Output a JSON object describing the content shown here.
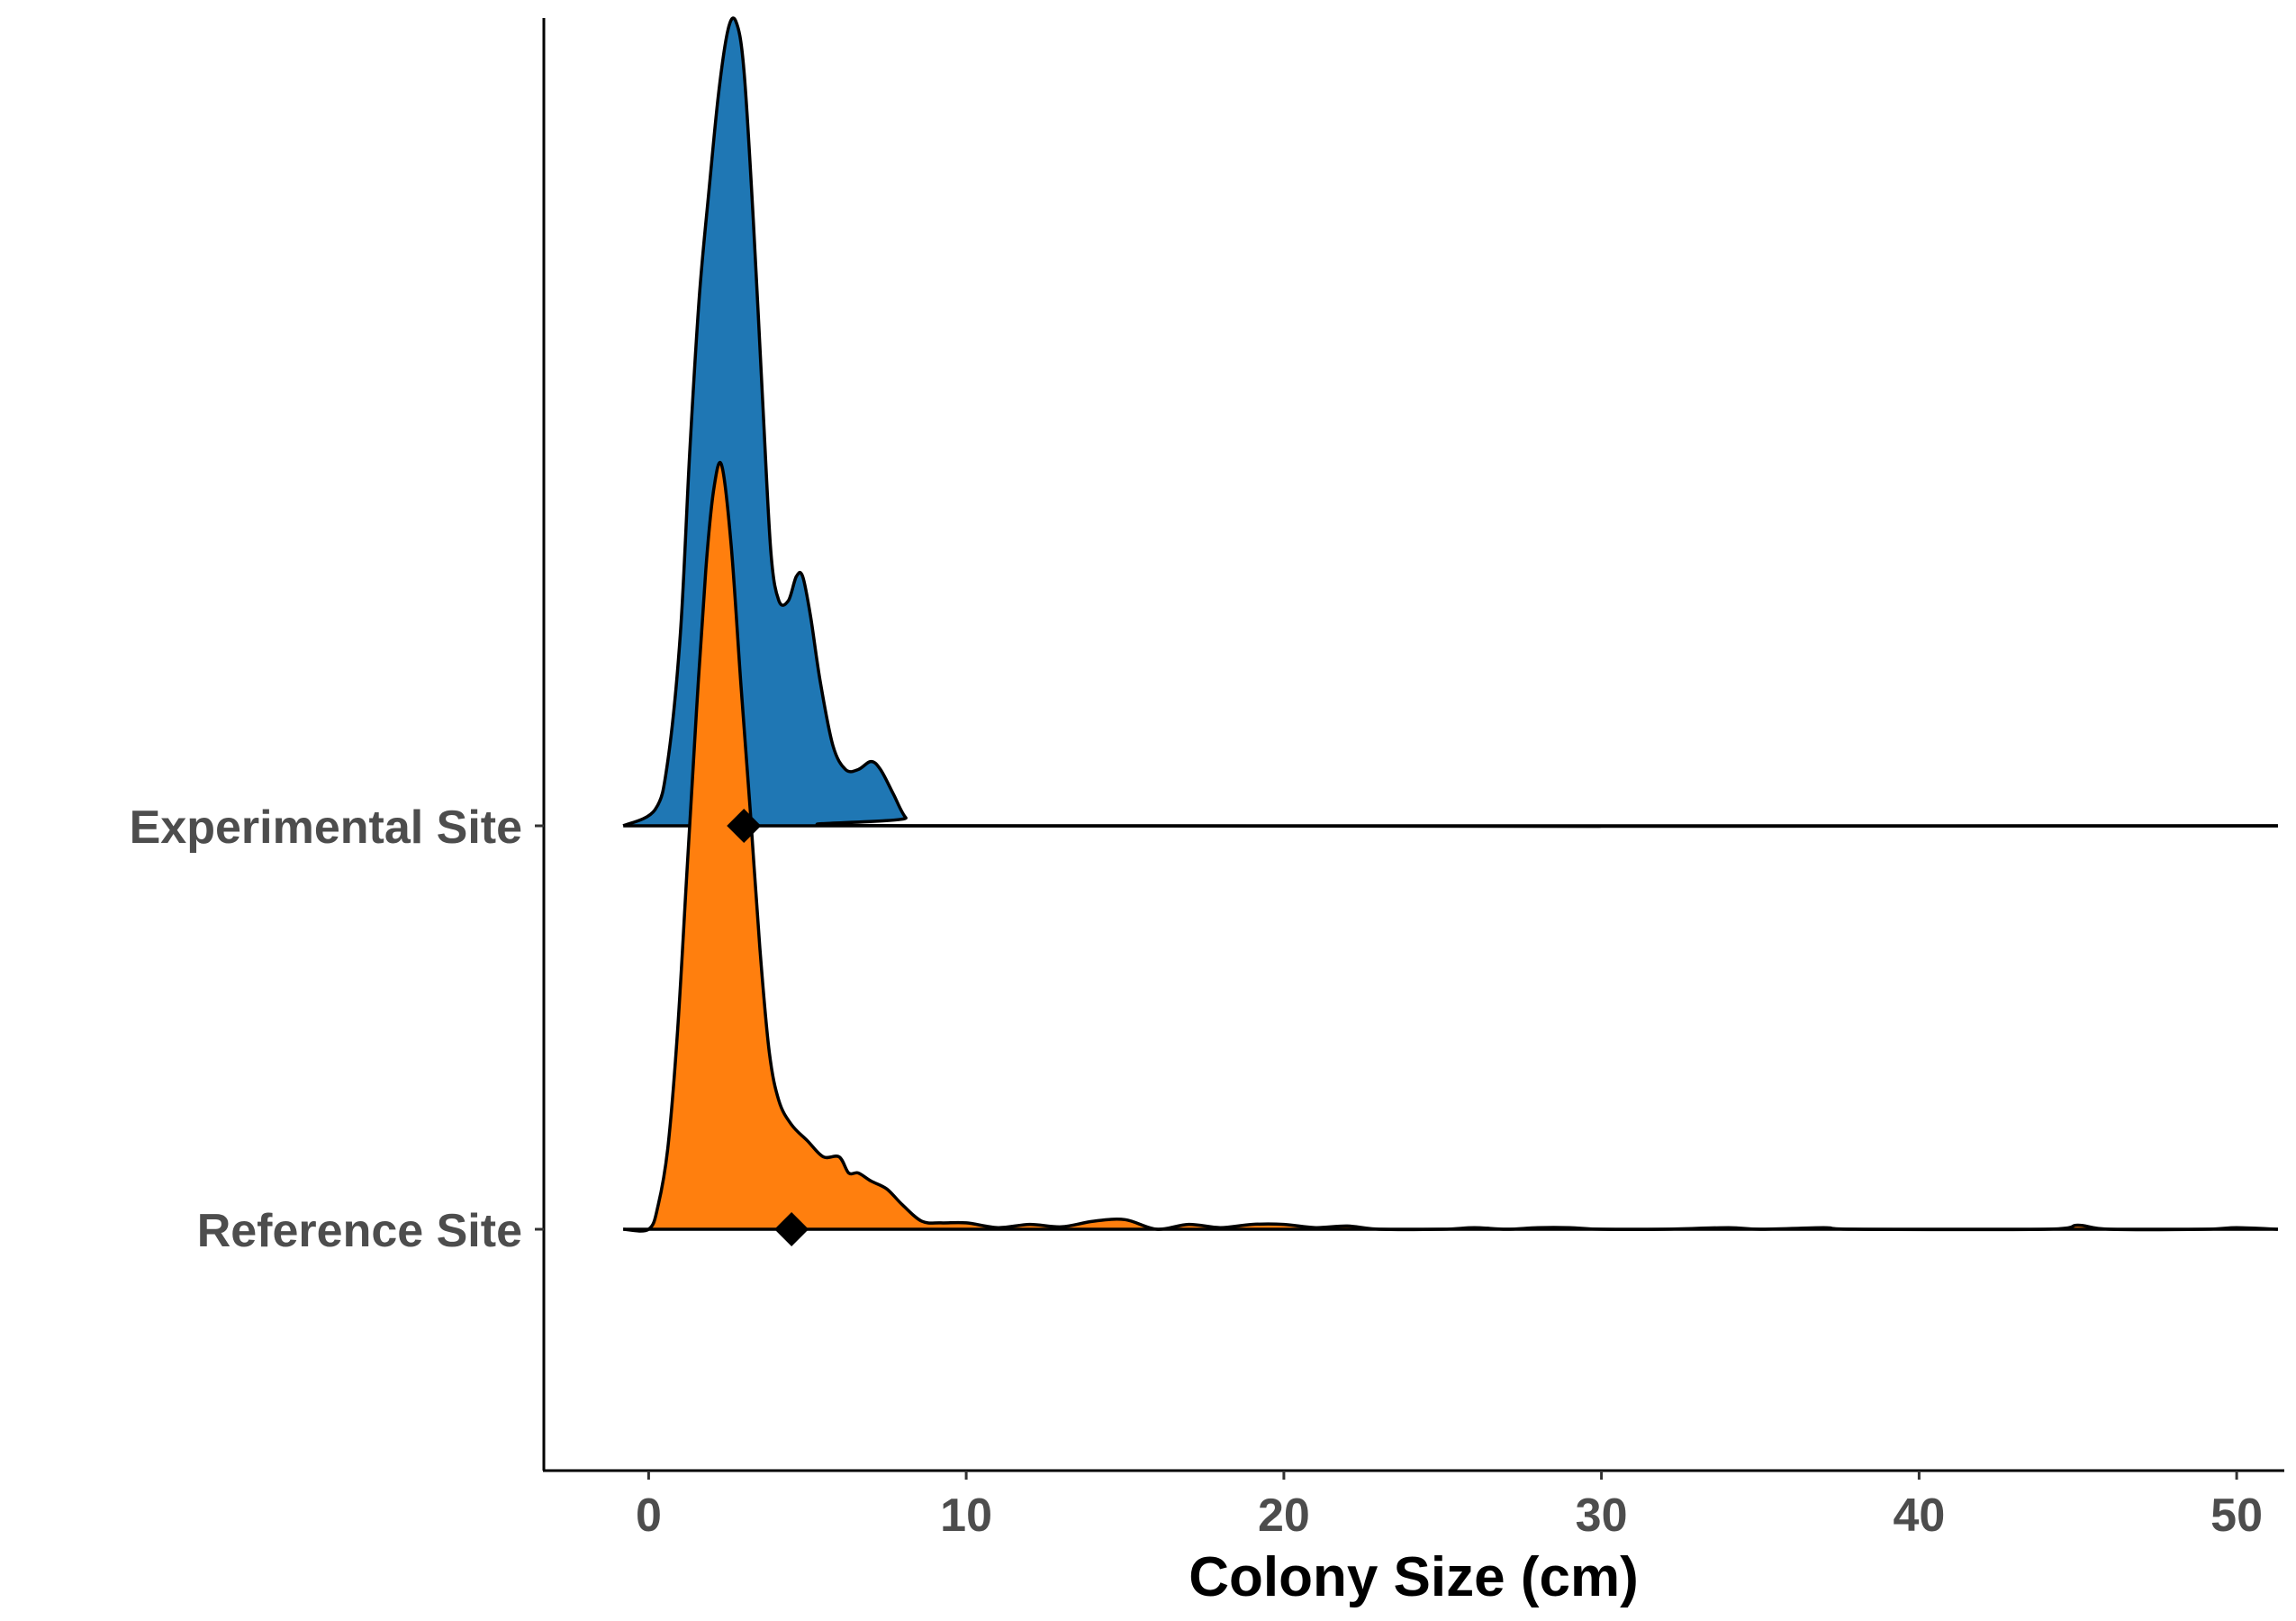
{
  "chart_data": {
    "type": "ridgeline",
    "xlabel": "Colony Size (cm)",
    "ylabel": "",
    "xlim": [
      -3.3,
      51.5
    ],
    "x_ticks": [
      0,
      10,
      20,
      30,
      40,
      50
    ],
    "x_tick_labels": [
      "0",
      "10",
      "20",
      "30",
      "40",
      "50"
    ],
    "grid": false,
    "legend": "none",
    "marker_shape": "diamond",
    "series": [
      {
        "name": "Experimental Site",
        "color": "#1f77b4",
        "mean": 3.0,
        "x": [
          -0.8,
          0.2,
          0.6,
          1.0,
          1.3,
          1.6,
          1.9,
          2.2,
          2.5,
          2.75,
          3.0,
          3.3,
          3.6,
          3.85,
          4.1,
          4.4,
          4.65,
          4.85,
          5.1,
          5.4,
          5.8,
          6.2,
          6.6,
          7.0,
          7.3,
          7.7,
          8.1,
          8.6,
          51.3
        ],
        "density": [
          0.0,
          0.02,
          0.08,
          0.24,
          0.47,
          0.66,
          0.79,
          0.91,
          0.99,
          1.0,
          0.94,
          0.75,
          0.52,
          0.34,
          0.28,
          0.28,
          0.31,
          0.31,
          0.26,
          0.18,
          0.1,
          0.07,
          0.07,
          0.08,
          0.07,
          0.04,
          0.01,
          0.0,
          0.0
        ]
      },
      {
        "name": "Reference Site",
        "color": "#ff7f0e",
        "mean": 4.5,
        "x": [
          -0.8,
          0.0,
          0.3,
          0.6,
          0.9,
          1.2,
          1.5,
          1.8,
          2.05,
          2.3,
          2.6,
          2.9,
          3.2,
          3.5,
          3.8,
          4.1,
          4.5,
          5.0,
          5.5,
          6.0,
          6.3,
          6.6,
          7.0,
          7.5,
          8.0,
          8.6,
          9.2,
          10.0,
          11.0,
          12.0,
          13.0,
          14.0,
          15.0,
          16.0,
          17.0,
          18.0,
          19.0,
          20.0,
          21.0,
          22.0,
          23.0,
          25.0,
          26.0,
          27.0,
          28.0,
          29.0,
          30.0,
          32.0,
          34.0,
          35.0,
          37.0,
          38.0,
          44.0,
          45.0,
          46.0,
          49.0,
          50.0,
          51.3
        ],
        "density": [
          0.0,
          0.0,
          0.03,
          0.1,
          0.24,
          0.44,
          0.64,
          0.82,
          0.92,
          0.95,
          0.85,
          0.68,
          0.52,
          0.35,
          0.22,
          0.16,
          0.13,
          0.11,
          0.09,
          0.09,
          0.07,
          0.07,
          0.06,
          0.05,
          0.03,
          0.01,
          0.008,
          0.008,
          0.002,
          0.006,
          0.003,
          0.01,
          0.012,
          0.0,
          0.006,
          0.002,
          0.006,
          0.006,
          0.002,
          0.004,
          0.0,
          0.0,
          0.002,
          0.0,
          0.002,
          0.002,
          0.0,
          0.0,
          0.002,
          0.0,
          0.002,
          0.0,
          0.0,
          0.005,
          0.0,
          0.0,
          0.002,
          0.0
        ]
      }
    ]
  }
}
